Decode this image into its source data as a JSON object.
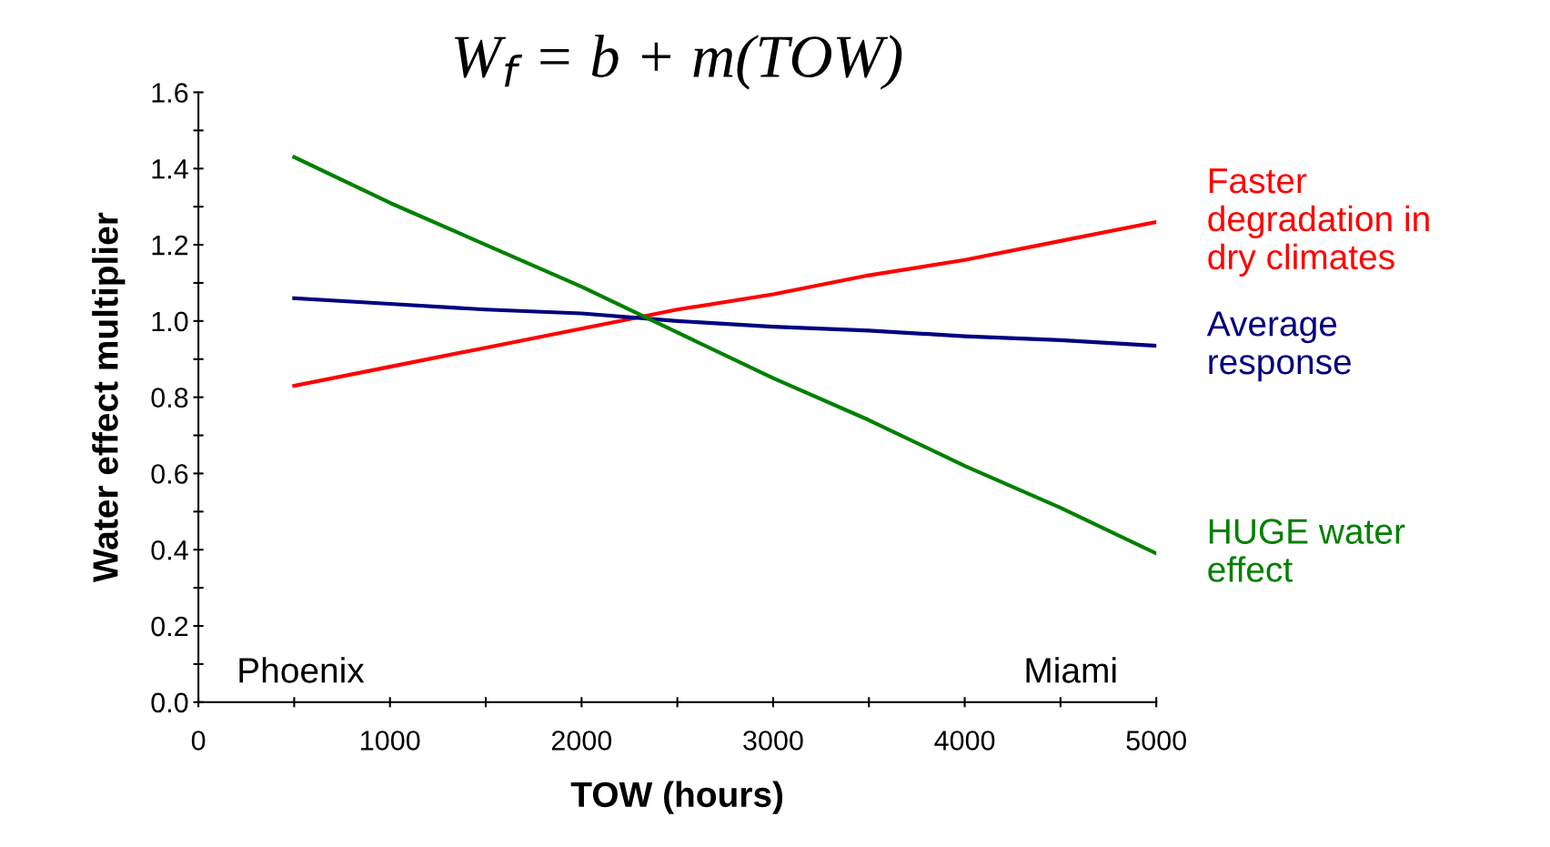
{
  "chart_data": {
    "type": "line",
    "title": "W$_{f}$ = b + m(TOW)",
    "xlabel": "TOW (hours)",
    "ylabel": "Water effect multiplier",
    "x": [
      500,
      1000,
      1500,
      2000,
      2500,
      3000,
      3500,
      4000,
      4500,
      5000
    ],
    "series": [
      {
        "name": "Faster\ndegradation in\ndry climates",
        "color": "#ff0000",
        "values": [
          0.83,
          0.88,
          0.93,
          0.98,
          1.03,
          1.07,
          1.12,
          1.16,
          1.21,
          1.26
        ]
      },
      {
        "name": "Average\nresponse",
        "color": "#000080",
        "values": [
          1.06,
          1.045,
          1.03,
          1.02,
          1.0,
          0.985,
          0.975,
          0.96,
          0.95,
          0.935
        ]
      },
      {
        "name": "HUGE water\neffect",
        "color": "#008000",
        "values": [
          1.43,
          1.31,
          1.2,
          1.09,
          0.97,
          0.85,
          0.74,
          0.62,
          0.51,
          0.39
        ]
      }
    ],
    "annotations": [
      "Phoenix",
      "Miami"
    ],
    "xlim": [
      0,
      5000
    ],
    "ylim": [
      0,
      1.6
    ],
    "xticks": [
      0,
      {
        "value": 500,
        "label": null
      },
      1000,
      {
        "value": 1500,
        "label": null
      },
      2000,
      {
        "value": 2500,
        "label": null
      },
      3000,
      {
        "value": 3500,
        "label": null
      },
      4000,
      {
        "value": 4500,
        "label": null
      },
      5000
    ],
    "yticks": [
      {
        "value": 0,
        "label": "0.0"
      },
      {
        "value": 0.1,
        "label": null
      },
      0.2,
      {
        "value": 0.3,
        "label": null
      },
      0.4,
      {
        "value": 0.5,
        "label": null
      },
      0.6,
      {
        "value": 0.7,
        "label": null
      },
      0.8,
      {
        "value": 0.9,
        "label": null
      },
      {
        "value": 1.0,
        "label": "1.0"
      },
      {
        "value": 1.1,
        "label": null
      },
      1.2,
      {
        "value": 1.3,
        "label": null
      },
      1.4,
      {
        "value": 1.5,
        "label": null
      },
      1.6
    ],
    "grid": false,
    "legend": false,
    "marker": "none",
    "line_style": "solid"
  }
}
